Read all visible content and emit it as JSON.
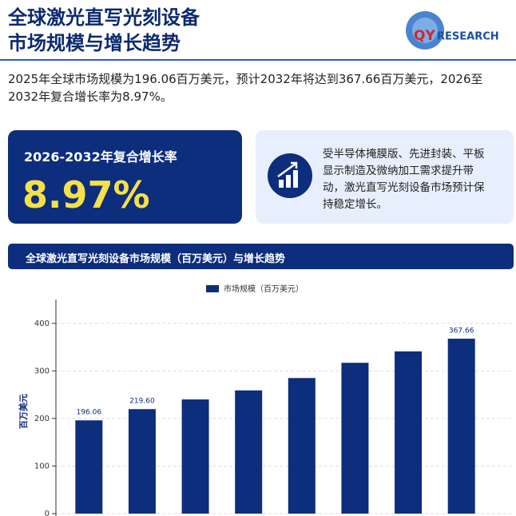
{
  "header": {
    "title_line1": "全球激光直写光刻设备",
    "title_line2": "市场规模与增长趋势",
    "logo_qy": "QY",
    "logo_research": "RESEARCH"
  },
  "summary": "2025年全球市场规模为196.06百万美元，预计2032年将达到367.66百万美元，2026至2032年复合增长率为8.97%。",
  "cagr_card": {
    "label": "2026-2032年复合增长率",
    "value": "8.97%"
  },
  "driver_card": {
    "text": "受半导体掩膜版、先进封装、平板显示制造及微纳加工需求提升带动，激光直写光刻设备市场预计保持稳定增长。"
  },
  "chart_data": {
    "type": "bar",
    "title": "全球激光直写光刻设备市场规模（百万美元）与增长趋势",
    "y_label": "百万美元",
    "categories": [
      null,
      null,
      null,
      null,
      null,
      null,
      null,
      null
    ],
    "series": [
      {
        "name": "市场规模（百万美元）",
        "color": "#0d2d7d",
        "values": [
          196.06,
          219.6,
          240,
          259,
          285,
          317,
          341,
          367.66
        ],
        "value_labels": [
          "196.06",
          "219.60",
          null,
          null,
          null,
          null,
          null,
          "367.66"
        ]
      }
    ],
    "ylim": [
      0,
      450
    ],
    "yticks": [
      0,
      100,
      200,
      300,
      400
    ],
    "grid": true
  }
}
